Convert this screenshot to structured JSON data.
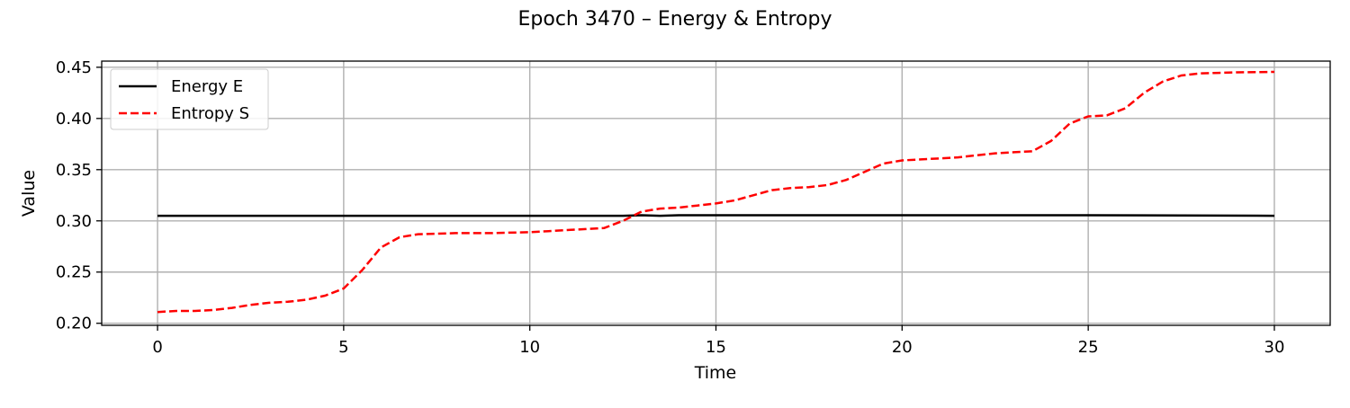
{
  "chart_data": {
    "type": "line",
    "title": "Epoch 3470 – Energy & Entropy",
    "xlabel": "Time",
    "ylabel": "Value",
    "xlim": [
      -1.5,
      31.5
    ],
    "ylim": [
      0.198,
      0.456
    ],
    "xticks": [
      0,
      5,
      10,
      15,
      20,
      25,
      30
    ],
    "xtick_labels": [
      "0",
      "5",
      "10",
      "15",
      "20",
      "25",
      "30"
    ],
    "yticks": [
      0.2,
      0.25,
      0.3,
      0.35,
      0.4,
      0.45
    ],
    "ytick_labels": [
      "0.20",
      "0.25",
      "0.30",
      "0.35",
      "0.40",
      "0.45"
    ],
    "grid": true,
    "legend_position": "top-left",
    "series": [
      {
        "name": "Energy E",
        "color": "#000000",
        "style": "solid",
        "x": [
          0,
          5,
          10,
          12.5,
          13,
          13.5,
          14,
          15,
          20,
          25,
          30
        ],
        "y": [
          0.305,
          0.305,
          0.305,
          0.305,
          0.3055,
          0.305,
          0.3055,
          0.3055,
          0.3055,
          0.3055,
          0.305
        ]
      },
      {
        "name": "Entropy S",
        "color": "#ff0000",
        "style": "dashed",
        "x": [
          0,
          0.5,
          1,
          1.5,
          2,
          2.5,
          3,
          3.5,
          4,
          4.5,
          5,
          5.5,
          6,
          6.5,
          7,
          7.5,
          8,
          9,
          10,
          10.5,
          11,
          11.5,
          12,
          12.5,
          13,
          13.5,
          14,
          14.5,
          15,
          15.5,
          16,
          16.5,
          17,
          17.5,
          18,
          18.5,
          19,
          19.5,
          20,
          20.5,
          21,
          21.5,
          22,
          22.5,
          23,
          23.5,
          24,
          24.5,
          25,
          25.5,
          26,
          26.5,
          27,
          27.5,
          28,
          28.5,
          29,
          29.5,
          30
        ],
        "y": [
          0.211,
          0.212,
          0.212,
          0.213,
          0.215,
          0.218,
          0.22,
          0.221,
          0.223,
          0.227,
          0.234,
          0.252,
          0.274,
          0.284,
          0.287,
          0.2875,
          0.288,
          0.288,
          0.289,
          0.29,
          0.291,
          0.292,
          0.293,
          0.3,
          0.309,
          0.312,
          0.313,
          0.315,
          0.317,
          0.32,
          0.325,
          0.33,
          0.332,
          0.333,
          0.335,
          0.34,
          0.348,
          0.356,
          0.359,
          0.36,
          0.361,
          0.362,
          0.364,
          0.366,
          0.367,
          0.368,
          0.378,
          0.395,
          0.402,
          0.403,
          0.41,
          0.425,
          0.436,
          0.442,
          0.444,
          0.4445,
          0.445,
          0.4452,
          0.4455
        ]
      }
    ]
  }
}
